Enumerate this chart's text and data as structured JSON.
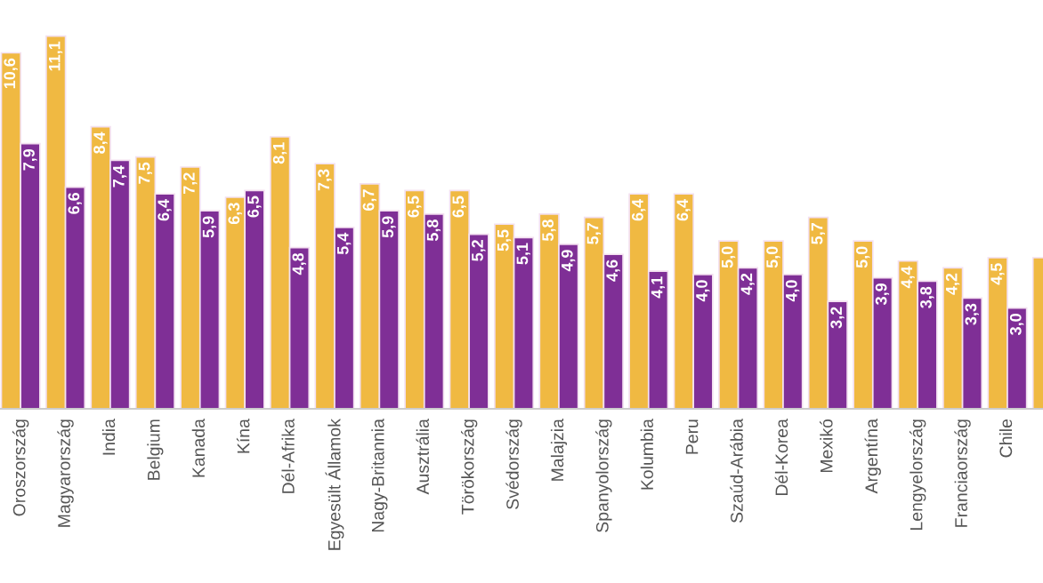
{
  "chart_data": {
    "type": "bar",
    "relative": false,
    "categories": [
      "Oroszország",
      "Magyarország",
      "India",
      "Belgium",
      "Kanada",
      "Kína",
      "Dél-Afrika",
      "Egyesült Államok",
      "Nagy-Britannia",
      "Ausztrália",
      "Törökország",
      "Svédország",
      "Malajzia",
      "Spanyolország",
      "Kolumbia",
      "Peru",
      "Szaúd-Arábia",
      "Dél-Korea",
      "Mexikó",
      "Argentína",
      "Lengyelország",
      "Franciaország",
      "Chile",
      null
    ],
    "series": [
      {
        "color": "#f0b942",
        "values": [
          10.6,
          11.1,
          8.4,
          7.5,
          7.2,
          6.3,
          8.1,
          7.3,
          6.7,
          6.5,
          6.5,
          5.5,
          5.8,
          5.7,
          6.4,
          6.4,
          5.0,
          5.0,
          5.7,
          5.0,
          4.4,
          4.2,
          4.5,
          4.5
        ],
        "value_labels": [
          "10,6",
          "11,1",
          "8,4",
          "7,5",
          "7,2",
          "6,3",
          "8,1",
          "7,3",
          "6,7",
          "6,5",
          "6,5",
          "5,5",
          "5,8",
          "5,7",
          "6,4",
          "6,4",
          "5,0",
          "5,0",
          "5,7",
          "5,0",
          "4,4",
          "4,2",
          "4,5",
          null
        ]
      },
      {
        "color": "#7f2f96",
        "values": [
          7.9,
          6.6,
          7.4,
          6.4,
          5.9,
          6.5,
          4.8,
          5.4,
          5.9,
          5.8,
          5.2,
          5.1,
          4.9,
          4.6,
          4.1,
          4.0,
          4.2,
          4.0,
          3.2,
          3.9,
          3.8,
          3.3,
          3.0,
          null
        ],
        "value_labels": [
          "7,9",
          "6,6",
          "7,4",
          "6,4",
          "5,9",
          "6,5",
          "4,8",
          "5,4",
          "5,9",
          "5,8",
          "5,2",
          "5,1",
          "4,9",
          "4,6",
          "4,1",
          "4,0",
          "4,2",
          "4,0",
          "3,2",
          "3,9",
          "3,8",
          "3,3",
          "3,0",
          null
        ]
      }
    ],
    "grid": false,
    "legend": false
  }
}
